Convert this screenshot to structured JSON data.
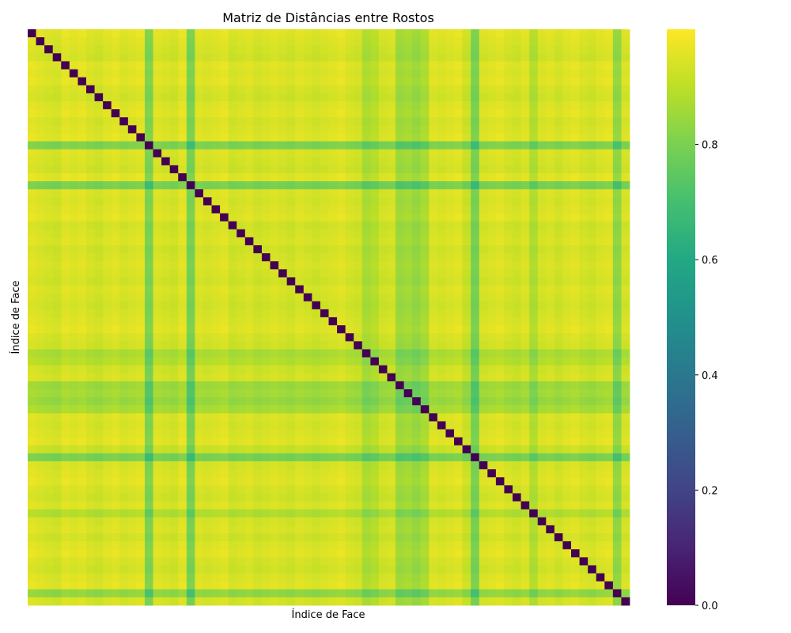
{
  "chart_data": {
    "type": "heatmap",
    "title": "Matriz de Distâncias entre Rostos",
    "xlabel": "Índice de Face",
    "ylabel": "Índice de Face",
    "n": 72,
    "diagonal_value": 0.0,
    "colormap": "viridis",
    "vmin": 0.0,
    "vmax": 1.0,
    "colorbar": {
      "ticks": [
        0.0,
        0.2,
        0.4,
        0.6,
        0.8
      ],
      "tick_labels": [
        "0.0",
        "0.2",
        "0.4",
        "0.6",
        "0.8"
      ]
    },
    "x_tick_labels": [],
    "y_tick_labels": [],
    "face_scores": [
      0.97,
      0.96,
      0.95,
      0.94,
      0.97,
      0.96,
      0.97,
      0.95,
      0.94,
      0.96,
      0.97,
      0.95,
      0.96,
      0.97,
      0.81,
      0.96,
      0.95,
      0.94,
      0.97,
      0.8,
      0.96,
      0.95,
      0.96,
      0.97,
      0.94,
      0.95,
      0.96,
      0.94,
      0.95,
      0.96,
      0.95,
      0.94,
      0.96,
      0.95,
      0.94,
      0.95,
      0.96,
      0.97,
      0.95,
      0.94,
      0.88,
      0.9,
      0.94,
      0.95,
      0.86,
      0.87,
      0.85,
      0.88,
      0.96,
      0.95,
      0.96,
      0.97,
      0.93,
      0.8,
      0.95,
      0.96,
      0.97,
      0.95,
      0.94,
      0.96,
      0.89,
      0.95,
      0.96,
      0.94,
      0.96,
      0.97,
      0.95,
      0.94,
      0.96,
      0.97,
      0.84,
      0.95
    ]
  }
}
